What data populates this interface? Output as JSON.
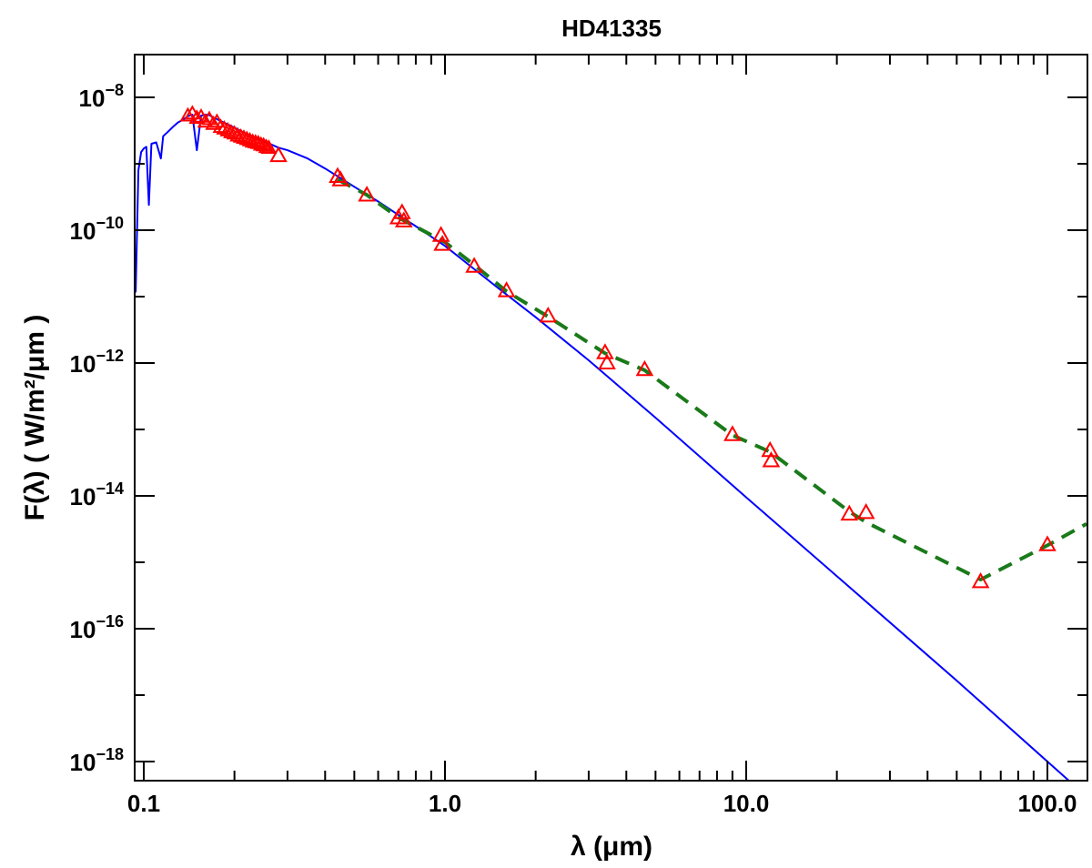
{
  "chart_data": {
    "type": "scatter",
    "title": "HD41335",
    "xlabel": "λ (μm)",
    "ylabel": "F(λ)  ( W/m²/μm )",
    "x_scale": "log",
    "y_scale": "log",
    "xlim": [
      0.09,
      135
    ],
    "ylim": [
      6e-19,
      5e-08
    ],
    "x_tick_labels": [
      {
        "value": 0.1,
        "label": "0.1"
      },
      {
        "value": 1.0,
        "label": "1.0"
      },
      {
        "value": 10.0,
        "label": "10.0"
      },
      {
        "value": 100.0,
        "label": "100.0"
      }
    ],
    "y_tick_labels": [
      {
        "value": 1e-08,
        "base": "10",
        "exp": "−8"
      },
      {
        "value": 1e-10,
        "base": "10",
        "exp": "−10"
      },
      {
        "value": 1e-12,
        "base": "10",
        "exp": "−12"
      },
      {
        "value": 1e-14,
        "base": "10",
        "exp": "−14"
      },
      {
        "value": 1e-16,
        "base": "10",
        "exp": "−16"
      },
      {
        "value": 1e-18,
        "base": "10",
        "exp": "−18"
      }
    ],
    "grid": false,
    "legend": "none",
    "series": [
      {
        "style": "solid-line",
        "color": "#0000ff",
        "description_kind": "stellar model",
        "points": [
          [
            0.0915,
            1e-11
          ],
          [
            0.094,
            1.2e-11
          ],
          [
            0.096,
            8e-10
          ],
          [
            0.098,
            1.5e-09
          ],
          [
            0.1,
            1.7e-09
          ],
          [
            0.102,
            1.8e-09
          ],
          [
            0.104,
            2.4e-10
          ],
          [
            0.106,
            2e-09
          ],
          [
            0.11,
            2.1e-09
          ],
          [
            0.114,
            1.2e-09
          ],
          [
            0.116,
            2.6e-09
          ],
          [
            0.12,
            3e-09
          ],
          [
            0.125,
            3.6e-09
          ],
          [
            0.13,
            4.2e-09
          ],
          [
            0.135,
            4.6e-09
          ],
          [
            0.14,
            5.2e-09
          ],
          [
            0.145,
            5.5e-09
          ],
          [
            0.15,
            1.6e-09
          ],
          [
            0.155,
            5.3e-09
          ],
          [
            0.16,
            5.5e-09
          ],
          [
            0.165,
            5.4e-09
          ],
          [
            0.17,
            5e-09
          ],
          [
            0.18,
            4.4e-09
          ],
          [
            0.2,
            3.5e-09
          ],
          [
            0.22,
            2.8e-09
          ],
          [
            0.25,
            2.2e-09
          ],
          [
            0.28,
            1.75e-09
          ],
          [
            0.3,
            1.6e-09
          ],
          [
            0.35,
            1.2e-09
          ],
          [
            0.4,
            8.5e-10
          ],
          [
            0.5,
            4.5e-10
          ],
          [
            0.6,
            2.7e-10
          ],
          [
            0.7,
            1.7e-10
          ],
          [
            0.8,
            1.15e-10
          ],
          [
            1.0,
            5.8e-11
          ],
          [
            1.5,
            1.35e-11
          ],
          [
            2.0,
            4.9e-12
          ],
          [
            3.0,
            1.1e-12
          ],
          [
            5.0,
            1.5e-13
          ],
          [
            10.0,
            9.5e-15
          ],
          [
            20.0,
            6.2e-16
          ],
          [
            50.0,
            1.65e-17
          ],
          [
            100.0,
            1e-18
          ],
          [
            120.0,
            4.8e-19
          ]
        ]
      },
      {
        "style": "dashed-line",
        "color": "#1a7a1a",
        "description_kind": "dust model",
        "points": [
          [
            0.44,
            5.8e-10
          ],
          [
            0.55,
            3.4e-10
          ],
          [
            0.7,
            1.55e-10
          ],
          [
            1.0,
            6.6e-11
          ],
          [
            1.25,
            3e-11
          ],
          [
            1.6,
            1.2e-11
          ],
          [
            2.2,
            5e-12
          ],
          [
            3.4,
            1.4e-12
          ],
          [
            4.6,
            7.8e-13
          ],
          [
            9.0,
            8.2e-14
          ],
          [
            12.0,
            4.6e-14
          ],
          [
            22.0,
            5.8e-15
          ],
          [
            25.0,
            4e-15
          ],
          [
            60.0,
            5.5e-16
          ],
          [
            100.0,
            1.8e-15
          ],
          [
            135.0,
            3.8e-15
          ]
        ]
      },
      {
        "style": "triangle-markers",
        "color": "#ff0000",
        "description_kind": "photometry",
        "points": [
          [
            0.44,
            6.3e-10
          ],
          [
            0.45,
            5.6e-10
          ],
          [
            0.55,
            3.3e-10
          ],
          [
            0.7,
            1.5e-10
          ],
          [
            0.72,
            1.8e-10
          ],
          [
            0.73,
            1.35e-10
          ],
          [
            0.97,
            8.2e-11
          ],
          [
            0.98,
            6e-11
          ],
          [
            1.25,
            2.8e-11
          ],
          [
            1.6,
            1.2e-11
          ],
          [
            2.2,
            5e-12
          ],
          [
            3.4,
            1.4e-12
          ],
          [
            3.45,
            9.8e-13
          ],
          [
            4.6,
            7.8e-13
          ],
          [
            9.0,
            8.2e-14
          ],
          [
            12.0,
            4.7e-14
          ],
          [
            12.1,
            3.3e-14
          ],
          [
            22.0,
            5.2e-15
          ],
          [
            25.0,
            5.5e-15
          ],
          [
            60.0,
            5e-16
          ],
          [
            100.0,
            1.8e-15
          ],
          [
            0.28,
            1.3e-09
          ]
        ]
      },
      {
        "style": "triangle-markers-dense",
        "color": "#ff0000",
        "description_kind": "UV spectrum",
        "x_range": [
          0.14,
          0.26
        ],
        "points": [
          [
            0.14,
            5.2e-09
          ],
          [
            0.145,
            5.6e-09
          ],
          [
            0.15,
            4.8e-09
          ],
          [
            0.155,
            5e-09
          ],
          [
            0.16,
            4.2e-09
          ],
          [
            0.165,
            4.6e-09
          ],
          [
            0.17,
            3.9e-09
          ],
          [
            0.175,
            4.2e-09
          ],
          [
            0.18,
            3.5e-09
          ],
          [
            0.185,
            3.3e-09
          ],
          [
            0.19,
            3.1e-09
          ],
          [
            0.195,
            2.9e-09
          ],
          [
            0.2,
            2.8e-09
          ],
          [
            0.205,
            2.6e-09
          ],
          [
            0.21,
            2.5e-09
          ],
          [
            0.215,
            2.4e-09
          ],
          [
            0.22,
            2.3e-09
          ],
          [
            0.225,
            2.2e-09
          ],
          [
            0.23,
            2.1e-09
          ],
          [
            0.235,
            2.05e-09
          ],
          [
            0.24,
            2e-09
          ],
          [
            0.245,
            1.9e-09
          ],
          [
            0.25,
            1.85e-09
          ],
          [
            0.255,
            1.75e-09
          ],
          [
            0.26,
            1.7e-09
          ]
        ]
      }
    ]
  }
}
